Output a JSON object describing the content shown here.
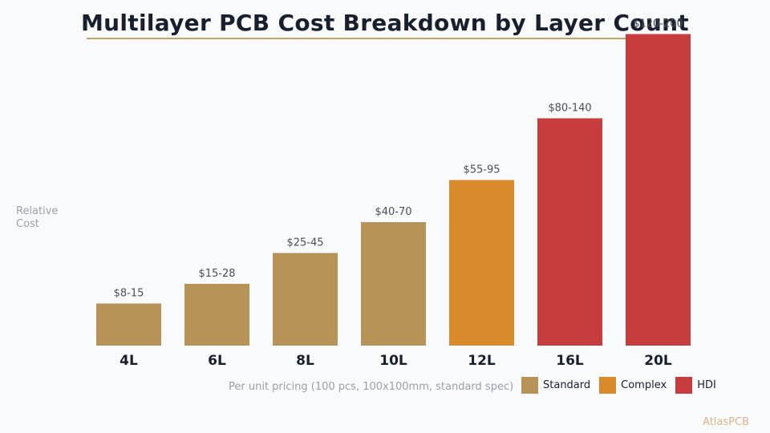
{
  "chart_data": {
    "type": "bar",
    "title": "Multilayer PCB Cost Breakdown by Layer Count",
    "ylabel": "Relative Cost",
    "xlabel": "",
    "subtitle": "Per unit pricing (100 pcs, 100x100mm, standard spec)",
    "categories": [
      "4L",
      "6L",
      "8L",
      "10L",
      "12L",
      "16L",
      "20L"
    ],
    "values": [
      15,
      22,
      33,
      44,
      59,
      81,
      111
    ],
    "ylim": [
      0,
      120
    ],
    "data_labels": [
      "$8-15",
      "$15-28",
      "$25-45",
      "$40-70",
      "$55-95",
      "$80-140",
      "$120-200"
    ],
    "bar_groups": [
      "Standard",
      "Standard",
      "Standard",
      "Standard",
      "Complex",
      "HDI",
      "HDI"
    ],
    "legend": [
      {
        "name": "Standard",
        "color": "#b89357"
      },
      {
        "name": "Complex",
        "color": "#d98b2b"
      },
      {
        "name": "HDI",
        "color": "#c73c3c"
      }
    ],
    "legend_position": "bottom-right",
    "grid": false
  },
  "brand": "AtlasPCB"
}
